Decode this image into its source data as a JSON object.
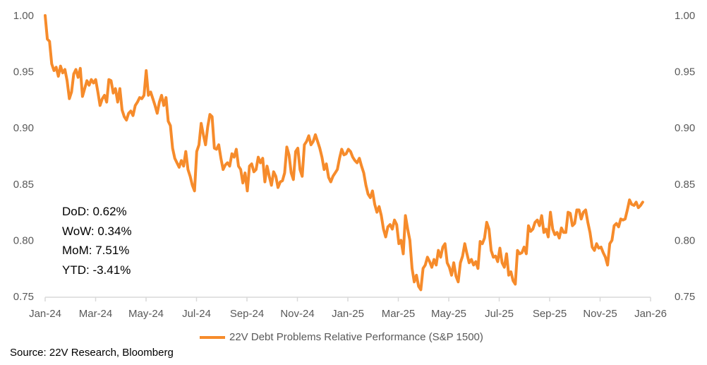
{
  "chart_data": {
    "type": "line",
    "title": "",
    "xlabel": "",
    "ylabel": "",
    "x_tick_labels": [
      "Jan-24",
      "Mar-24",
      "May-24",
      "Jul-24",
      "Sep-24",
      "Nov-24",
      "Jan-25",
      "Mar-25",
      "May-25",
      "Jul-25",
      "Sep-25",
      "Nov-25",
      "Jan-26"
    ],
    "x_range_months": [
      0,
      24
    ],
    "x_last_month": 23.69,
    "y_tick_labels": [
      "1.00",
      "0.95",
      "0.90",
      "0.85",
      "0.80",
      "0.75"
    ],
    "ylim": [
      0.75,
      1.0
    ],
    "grid": false,
    "legend_position": "bottom",
    "series": [
      {
        "name": "22V Debt Problems Relative Performance (S&P 1500)",
        "color": "#F68B2B",
        "values": [
          1.0,
          0.979,
          0.977,
          0.957,
          0.951,
          0.954,
          0.946,
          0.955,
          0.949,
          0.952,
          0.942,
          0.926,
          0.932,
          0.948,
          0.952,
          0.945,
          0.953,
          0.928,
          0.935,
          0.942,
          0.938,
          0.943,
          0.94,
          0.943,
          0.932,
          0.92,
          0.926,
          0.929,
          0.923,
          0.943,
          0.942,
          0.931,
          0.935,
          0.923,
          0.935,
          0.916,
          0.91,
          0.907,
          0.913,
          0.915,
          0.911,
          0.92,
          0.923,
          0.927,
          0.926,
          0.929,
          0.951,
          0.929,
          0.932,
          0.926,
          0.92,
          0.913,
          0.923,
          0.929,
          0.92,
          0.927,
          0.906,
          0.902,
          0.882,
          0.873,
          0.869,
          0.865,
          0.871,
          0.866,
          0.879,
          0.863,
          0.857,
          0.849,
          0.844,
          0.879,
          0.885,
          0.904,
          0.894,
          0.885,
          0.901,
          0.912,
          0.91,
          0.882,
          0.881,
          0.885,
          0.873,
          0.863,
          0.867,
          0.869,
          0.866,
          0.877,
          0.874,
          0.881,
          0.866,
          0.863,
          0.851,
          0.86,
          0.844,
          0.866,
          0.868,
          0.861,
          0.863,
          0.874,
          0.869,
          0.873,
          0.852,
          0.866,
          0.857,
          0.849,
          0.861,
          0.857,
          0.847,
          0.852,
          0.853,
          0.86,
          0.883,
          0.876,
          0.86,
          0.854,
          0.879,
          0.882,
          0.863,
          0.857,
          0.885,
          0.888,
          0.893,
          0.885,
          0.888,
          0.894,
          0.888,
          0.882,
          0.874,
          0.863,
          0.868,
          0.856,
          0.852,
          0.857,
          0.86,
          0.863,
          0.873,
          0.881,
          0.876,
          0.877,
          0.881,
          0.879,
          0.874,
          0.871,
          0.869,
          0.873,
          0.866,
          0.86,
          0.849,
          0.841,
          0.838,
          0.844,
          0.832,
          0.825,
          0.83,
          0.822,
          0.81,
          0.803,
          0.812,
          0.814,
          0.81,
          0.818,
          0.814,
          0.797,
          0.8,
          0.788,
          0.822,
          0.81,
          0.8,
          0.775,
          0.763,
          0.769,
          0.759,
          0.756,
          0.775,
          0.778,
          0.785,
          0.781,
          0.776,
          0.783,
          0.778,
          0.791,
          0.785,
          0.794,
          0.797,
          0.78,
          0.776,
          0.769,
          0.78,
          0.768,
          0.763,
          0.78,
          0.786,
          0.797,
          0.788,
          0.78,
          0.783,
          0.778,
          0.781,
          0.775,
          0.799,
          0.797,
          0.802,
          0.816,
          0.81,
          0.791,
          0.785,
          0.786,
          0.781,
          0.793,
          0.78,
          0.776,
          0.788,
          0.769,
          0.772,
          0.764,
          0.761,
          0.791,
          0.788,
          0.789,
          0.794,
          0.788,
          0.813,
          0.808,
          0.81,
          0.816,
          0.818,
          0.813,
          0.822,
          0.807,
          0.81,
          0.803,
          0.825,
          0.81,
          0.805,
          0.807,
          0.802,
          0.811,
          0.807,
          0.807,
          0.825,
          0.824,
          0.813,
          0.815,
          0.827,
          0.827,
          0.819,
          0.825,
          0.827,
          0.816,
          0.807,
          0.794,
          0.791,
          0.797,
          0.793,
          0.794,
          0.789,
          0.785,
          0.778,
          0.797,
          0.8,
          0.813,
          0.815,
          0.812,
          0.819,
          0.818,
          0.819,
          0.827,
          0.836,
          0.832,
          0.831,
          0.834,
          0.829,
          0.831,
          0.834
        ]
      }
    ]
  },
  "stats": {
    "dod": "DoD:  0.62%",
    "wow": "WoW: 0.34%",
    "mom": "MoM: 7.51%",
    "ytd": "YTD:  -3.41%"
  },
  "legend_label": "22V Debt Problems Relative Performance (S&P 1500)",
  "source": "Source: 22V Research, Bloomberg"
}
